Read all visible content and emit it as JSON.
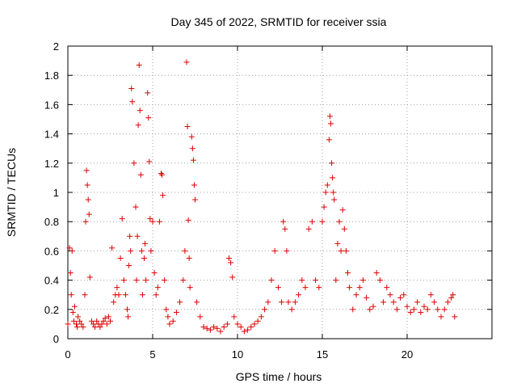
{
  "chart_data": {
    "type": "scatter",
    "title": "Day 345 of 2022, SRMTID for receiver ssia",
    "xlabel": "GPS time / hours",
    "ylabel": "SRMTID / TECUs",
    "xlim": [
      0,
      25
    ],
    "ylim": [
      0,
      2
    ],
    "xticks": [
      "0",
      "5",
      "10",
      "15",
      "20"
    ],
    "xtick_values": [
      0,
      5,
      10,
      15,
      20
    ],
    "yticks": [
      "0",
      "0.2",
      "0.4",
      "0.6",
      "0.8",
      "1",
      "1.2",
      "1.4",
      "1.6",
      "1.8",
      "2"
    ],
    "ytick_values": [
      0,
      0.2,
      0.4,
      0.6,
      0.8,
      1.0,
      1.2,
      1.4,
      1.6,
      1.8,
      2.0
    ],
    "grid": true,
    "marker": "+",
    "marker_color": "#e00000",
    "series": [
      {
        "name": "SRMTID",
        "x": [
          0.0,
          0.1,
          0.15,
          0.2,
          0.25,
          0.3,
          0.35,
          0.4,
          0.5,
          0.55,
          0.6,
          0.7,
          0.8,
          0.9,
          1.0,
          1.05,
          1.1,
          1.15,
          1.2,
          1.25,
          1.3,
          1.4,
          1.5,
          1.6,
          1.7,
          1.8,
          1.9,
          2.0,
          2.1,
          2.2,
          2.3,
          2.4,
          2.5,
          2.6,
          2.7,
          2.8,
          2.9,
          3.0,
          3.1,
          3.2,
          3.3,
          3.4,
          3.5,
          3.55,
          3.6,
          3.65,
          3.7,
          3.75,
          3.8,
          3.9,
          4.0,
          4.05,
          4.1,
          4.15,
          4.2,
          4.25,
          4.3,
          4.35,
          4.4,
          4.5,
          4.55,
          4.6,
          4.7,
          4.75,
          4.8,
          4.85,
          4.9,
          5.0,
          5.1,
          5.2,
          5.3,
          5.4,
          5.5,
          5.55,
          5.6,
          5.7,
          5.8,
          5.9,
          6.0,
          6.2,
          6.4,
          6.6,
          6.8,
          6.9,
          7.0,
          7.05,
          7.1,
          7.15,
          7.2,
          7.3,
          7.35,
          7.4,
          7.45,
          7.5,
          7.6,
          7.8,
          8.0,
          8.2,
          8.4,
          8.6,
          8.8,
          9.0,
          9.2,
          9.4,
          9.5,
          9.6,
          9.7,
          9.8,
          10.0,
          10.2,
          10.4,
          10.6,
          10.8,
          11.0,
          11.2,
          11.4,
          11.6,
          11.8,
          12.0,
          12.2,
          12.4,
          12.6,
          12.7,
          12.8,
          12.9,
          13.0,
          13.2,
          13.4,
          13.6,
          13.8,
          14.0,
          14.2,
          14.4,
          14.6,
          14.8,
          15.0,
          15.1,
          15.2,
          15.3,
          15.4,
          15.45,
          15.5,
          15.55,
          15.6,
          15.65,
          15.7,
          15.8,
          15.9,
          16.0,
          16.1,
          16.2,
          16.3,
          16.4,
          16.5,
          16.6,
          16.8,
          17.0,
          17.2,
          17.4,
          17.6,
          17.8,
          18.0,
          18.2,
          18.4,
          18.6,
          18.8,
          19.0,
          19.2,
          19.4,
          19.6,
          19.8,
          20.0,
          20.2,
          20.4,
          20.6,
          20.8,
          21.0,
          21.2,
          21.4,
          21.6,
          21.8,
          22.0,
          22.2,
          22.4,
          22.6,
          22.7,
          22.8
        ],
        "y": [
          0.1,
          0.62,
          0.45,
          0.3,
          0.6,
          0.18,
          0.12,
          0.22,
          0.1,
          0.08,
          0.15,
          0.12,
          0.1,
          0.08,
          0.3,
          0.8,
          1.15,
          1.05,
          0.95,
          0.85,
          0.42,
          0.12,
          0.1,
          0.08,
          0.12,
          0.1,
          0.08,
          0.1,
          0.12,
          0.14,
          0.1,
          0.15,
          0.12,
          0.62,
          0.25,
          0.3,
          0.35,
          0.3,
          0.55,
          0.82,
          0.4,
          0.3,
          0.2,
          0.15,
          0.5,
          0.7,
          0.6,
          1.71,
          1.62,
          1.2,
          0.9,
          0.4,
          0.7,
          1.46,
          1.87,
          1.56,
          1.12,
          0.6,
          0.3,
          0.55,
          0.65,
          0.4,
          1.68,
          1.51,
          1.21,
          0.82,
          0.6,
          0.8,
          0.45,
          0.3,
          0.35,
          0.8,
          1.13,
          1.12,
          0.98,
          0.4,
          0.2,
          0.15,
          0.1,
          0.12,
          0.18,
          0.25,
          0.4,
          0.6,
          1.89,
          1.45,
          0.81,
          0.55,
          0.35,
          1.38,
          1.3,
          1.22,
          1.05,
          0.95,
          0.25,
          0.15,
          0.08,
          0.07,
          0.06,
          0.08,
          0.07,
          0.05,
          0.08,
          0.1,
          0.55,
          0.52,
          0.42,
          0.15,
          0.1,
          0.08,
          0.05,
          0.06,
          0.08,
          0.1,
          0.12,
          0.15,
          0.2,
          0.25,
          0.4,
          0.6,
          0.35,
          0.25,
          0.8,
          0.75,
          0.6,
          0.25,
          0.2,
          0.25,
          0.3,
          0.4,
          0.35,
          0.75,
          0.8,
          0.4,
          0.35,
          0.8,
          0.9,
          1.0,
          1.05,
          1.36,
          1.52,
          1.47,
          1.2,
          1.1,
          1.0,
          0.95,
          0.4,
          0.65,
          0.8,
          0.6,
          0.88,
          0.75,
          0.6,
          0.45,
          0.35,
          0.2,
          0.3,
          0.35,
          0.4,
          0.28,
          0.2,
          0.22,
          0.45,
          0.4,
          0.25,
          0.35,
          0.3,
          0.25,
          0.2,
          0.28,
          0.3,
          0.22,
          0.18,
          0.2,
          0.25,
          0.18,
          0.22,
          0.2,
          0.3,
          0.25,
          0.2,
          0.15,
          0.2,
          0.25,
          0.28,
          0.3,
          0.15
        ]
      }
    ]
  }
}
